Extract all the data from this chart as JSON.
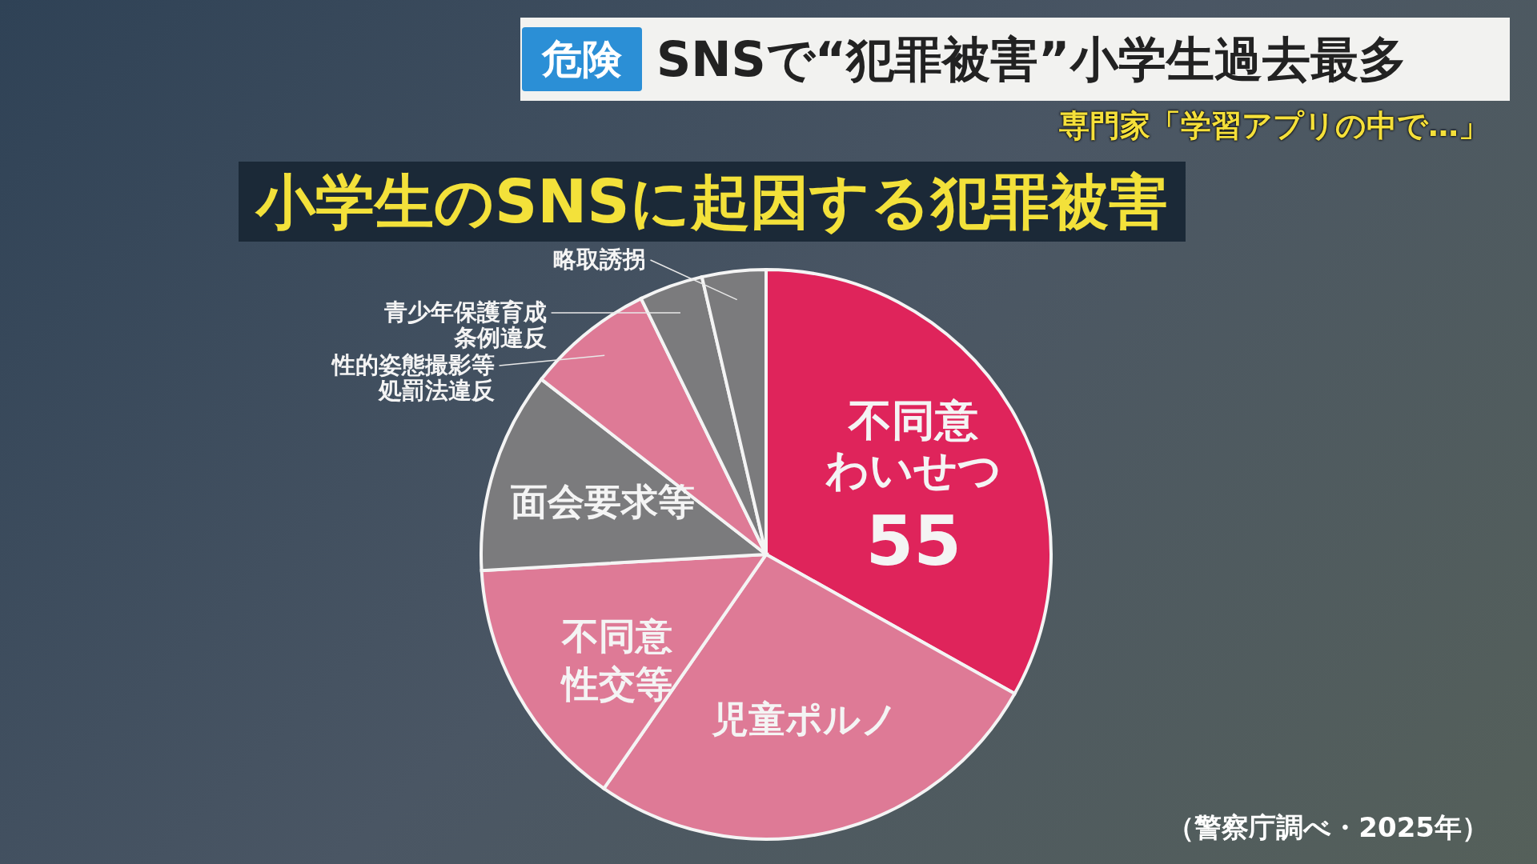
{
  "chart_data": {
    "type": "pie",
    "title": "小学生のSNSに起因する犯罪被害",
    "categories": [
      "不同意わいせつ",
      "児童ポルノ",
      "不同意性交等",
      "面会要求等",
      "性的姿態撮影等処罰法違反",
      "青少年保護育成条例違反",
      "略取誘拐"
    ],
    "values": [
      55,
      44,
      24,
      19,
      12,
      6,
      6
    ],
    "value_labels": [
      "55",
      null,
      null,
      null,
      null,
      null,
      null
    ],
    "colors": [
      "#df245b",
      "#de7a96",
      "#de7a96",
      "#7b7b7d",
      "#de7a96",
      "#7b7b7d",
      "#7b7b7d"
    ],
    "annotations": [
      "危険",
      "SNSで“犯罪被害”小学生過去最多",
      "専門家「学習アプリの中で…」",
      "（警察庁調べ・2025年）"
    ]
  }
}
